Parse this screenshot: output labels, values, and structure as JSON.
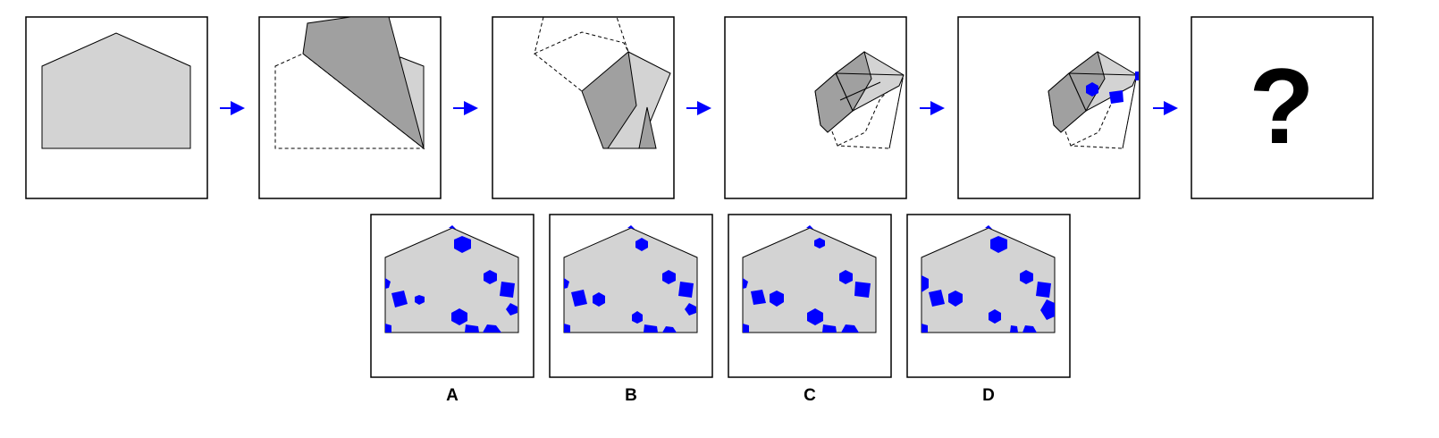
{
  "puzzle": {
    "question_mark": "?",
    "arrow_color": "#0000ff",
    "paper_fill": "#d3d3d3",
    "fold_fill": "#a0a0a0",
    "hole_color": "#0000ff"
  },
  "options": [
    {
      "label": "A"
    },
    {
      "label": "B"
    },
    {
      "label": "C"
    },
    {
      "label": "D"
    }
  ]
}
